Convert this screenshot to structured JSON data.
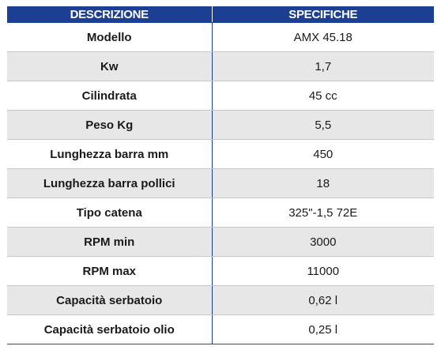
{
  "header": {
    "col1": "DESCRIZIONE",
    "col2": "SPECIFICHE"
  },
  "rows": [
    {
      "label": "Modello",
      "value": "AMX 45.18"
    },
    {
      "label": "Kw",
      "value": "1,7"
    },
    {
      "label": "Cilindrata",
      "value": "45 cc"
    },
    {
      "label": "Peso Kg",
      "value": "5,5"
    },
    {
      "label": "Lunghezza barra mm",
      "value": "450"
    },
    {
      "label": "Lunghezza barra pollici",
      "value": "18"
    },
    {
      "label": "Tipo catena",
      "value": "325\"-1,5 72E"
    },
    {
      "label": "RPM min",
      "value": "3000"
    },
    {
      "label": "RPM max",
      "value": "11000"
    },
    {
      "label": "Capacità serbatoio",
      "value": "0,62 l"
    },
    {
      "label": "Capacità serbatoio olio",
      "value": "0,25 l"
    }
  ],
  "colors": {
    "header_bg": "#1c3f93",
    "header_text": "#ffffff",
    "alt_row_bg": "#e7e7e7"
  }
}
